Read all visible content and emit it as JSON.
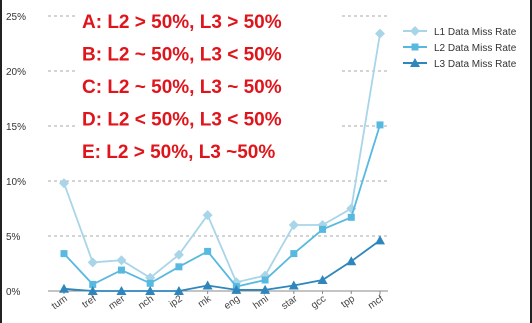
{
  "chart_data": {
    "type": "line",
    "title": "",
    "xlabel": "",
    "ylabel": "",
    "ylim": [
      0,
      25
    ],
    "yticks": [
      "0%",
      "5%",
      "10%",
      "15%",
      "20%",
      "25%"
    ],
    "categories": [
      "tum",
      "tref",
      "mer",
      "nch",
      "ip2",
      "mk",
      "eng",
      "hmi",
      "star",
      "gcc",
      "tpp",
      "mcf"
    ],
    "grid": "dashed-horizontal",
    "legend": "top-right",
    "series": [
      {
        "name": "L1 Data Miss Rate",
        "marker": "diamond",
        "color": "#a9d5e8",
        "values": [
          9.8,
          2.6,
          2.8,
          1.2,
          3.3,
          6.9,
          0.8,
          1.4,
          6.0,
          6.0,
          7.5,
          23.4
        ]
      },
      {
        "name": "L2 Data Miss Rate",
        "marker": "square",
        "color": "#58b9e0",
        "values": [
          3.4,
          0.6,
          1.9,
          0.7,
          2.2,
          3.6,
          0.4,
          1.0,
          3.4,
          5.6,
          6.7,
          15.1
        ]
      },
      {
        "name": "L3 Data Miss Rate",
        "marker": "triangle",
        "color": "#2f86bd",
        "values": [
          0.2,
          0.0,
          0.0,
          0.0,
          0.0,
          0.5,
          0.1,
          0.1,
          0.5,
          1.0,
          2.7,
          4.6
        ]
      }
    ],
    "annotations": [
      "A: L2 > 50%, L3 > 50%",
      "B: L2 ~ 50%, L3 < 50%",
      "C: L2 ~ 50%, L3 ~ 50%",
      "D: L2 < 50%, L3 < 50%",
      "E: L2 > 50%, L3 ~50%"
    ]
  }
}
